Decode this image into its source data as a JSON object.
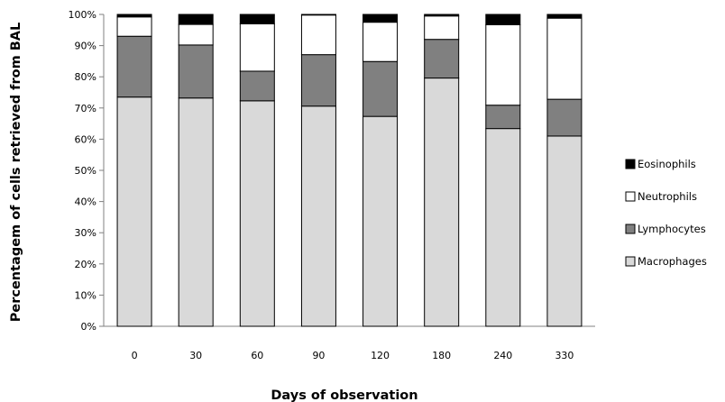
{
  "chart_data": {
    "type": "bar",
    "stacked": true,
    "categories": [
      "0",
      "30",
      "60",
      "90",
      "120",
      "180",
      "240",
      "330"
    ],
    "series": [
      {
        "name": "Macrophages",
        "color": "#d9d9d9",
        "values": [
          73.5,
          73.2,
          72.3,
          70.6,
          67.3,
          79.6,
          63.4,
          61.0
        ]
      },
      {
        "name": "Lymphocytes",
        "color": "#808080",
        "values": [
          19.5,
          17.0,
          9.5,
          16.5,
          17.6,
          12.4,
          7.5,
          11.8
        ]
      },
      {
        "name": "Neutrophils",
        "color": "#ffffff",
        "values": [
          6.2,
          6.6,
          15.2,
          12.7,
          12.6,
          7.5,
          25.8,
          26.0
        ]
      },
      {
        "name": "Eosinophils",
        "color": "#000000",
        "values": [
          0.8,
          3.2,
          3.0,
          0.2,
          2.5,
          0.5,
          3.3,
          1.2
        ]
      }
    ],
    "title": "",
    "xlabel": "Days of observation",
    "ylabel": "Percentagem of cells retrieved from BAL",
    "ylim": [
      0,
      100
    ],
    "yticks": [
      "0%",
      "10%",
      "20%",
      "30%",
      "40%",
      "50%",
      "60%",
      "70%",
      "80%",
      "90%",
      "100%"
    ],
    "legend_position": "right",
    "legend_order": [
      "Eosinophils",
      "Neutrophils",
      "Lymphocytes",
      "Macrophages"
    ],
    "grid": false
  }
}
